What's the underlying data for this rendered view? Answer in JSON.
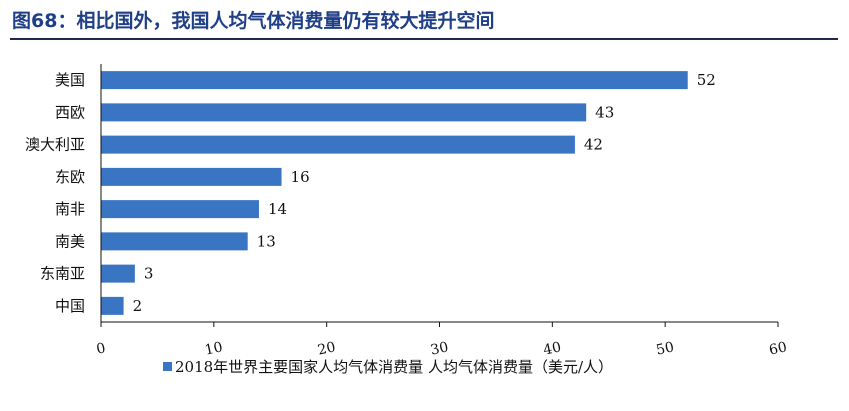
{
  "figure": {
    "title": "图68：相比国外，我国人均气体消费量仍有较大提升空间"
  },
  "colors": {
    "bar": "#3a75c4",
    "title": "#1f3f86",
    "rule": "#1f2a4d"
  },
  "chart_data": {
    "type": "bar",
    "orientation": "horizontal",
    "categories": [
      "美国",
      "西欧",
      "澳大利亚",
      "东欧",
      "南非",
      "南美",
      "东南亚",
      "中国"
    ],
    "series": [
      {
        "name": "2018年世界主要国家人均气体消费量 人均气体消费量（美元/人）",
        "values": [
          52,
          43,
          42,
          16,
          14,
          13,
          3,
          2
        ]
      }
    ],
    "xlim": [
      0,
      60
    ],
    "xticks": [
      0,
      10,
      20,
      30,
      40,
      50,
      60
    ],
    "xlabel": "",
    "ylabel": "",
    "grid": false,
    "legend": "bottom"
  }
}
